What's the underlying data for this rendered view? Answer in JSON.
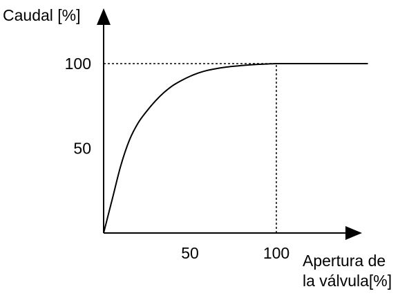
{
  "chart_data": {
    "type": "line",
    "title": "",
    "ylabel": "Caudal [%]",
    "xlabel": [
      "Apertura de",
      "la válvula[%]"
    ],
    "x_ticks": [
      {
        "value": 50,
        "label": "50"
      },
      {
        "value": 100,
        "label": "100"
      }
    ],
    "y_ticks": [
      {
        "value": 50,
        "label": "50"
      },
      {
        "value": 100,
        "label": "100"
      }
    ],
    "xlim": [
      0,
      150
    ],
    "ylim": [
      0,
      100
    ],
    "grid": false,
    "series": [
      {
        "x": [
          0,
          5,
          10,
          15,
          20,
          25,
          30,
          35,
          40,
          45,
          50,
          55,
          60,
          65,
          70,
          75,
          80,
          85,
          90,
          95,
          100,
          105,
          110,
          120,
          130,
          140,
          153
        ],
        "y": [
          0,
          20,
          40,
          55,
          65,
          72,
          78,
          83,
          87,
          90,
          92.5,
          94.5,
          96,
          97,
          97.8,
          98.4,
          98.9,
          99.3,
          99.6,
          99.8,
          100,
          100,
          100,
          100,
          100,
          100,
          100
        ]
      }
    ],
    "reference_lines": [
      {
        "from": [
          0,
          100
        ],
        "to": [
          100,
          100
        ],
        "style": "dotted"
      },
      {
        "from": [
          100,
          0
        ],
        "to": [
          100,
          100
        ],
        "style": "dotted"
      }
    ]
  }
}
